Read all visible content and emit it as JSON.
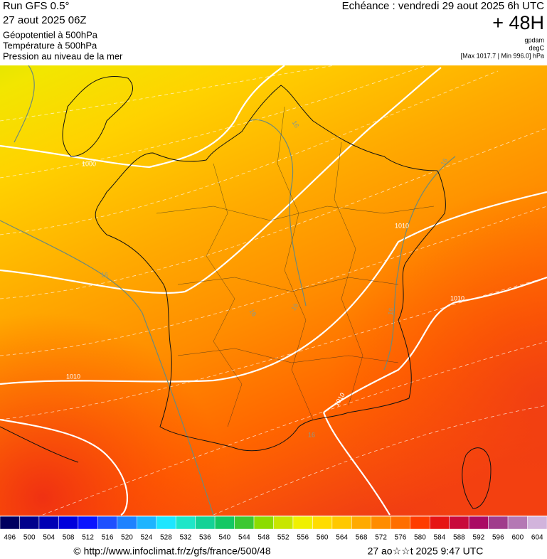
{
  "header": {
    "run": "Run GFS 0.5°",
    "date": "27 aout 2025 06Z",
    "title": "Géopotentiel à 500hPa",
    "subtitle1": "Température à 500hPa",
    "subtitle2": "Pression au niveau de la mer",
    "valid": "Echéance : vendredi 29 aout 2025 6h UTC",
    "lead": "+ 48H",
    "units": [
      "gpdam",
      "degC",
      "[Max 1017.7 | Min 996.0] hPa"
    ]
  },
  "map": {
    "contour_labels": [
      1000,
      1010,
      1010,
      1010,
      1010,
      16,
      16,
      16,
      16,
      16,
      16,
      16
    ]
  },
  "colorbar": {
    "values": [
      496,
      500,
      504,
      508,
      512,
      516,
      520,
      524,
      528,
      532,
      536,
      540,
      544,
      548,
      552,
      556,
      560,
      564,
      568,
      572,
      576,
      580,
      584,
      588,
      592,
      596,
      600,
      604
    ],
    "colors": [
      "#000060",
      "#00008c",
      "#0000b4",
      "#0000dc",
      "#0a14ff",
      "#1e50ff",
      "#1e82ff",
      "#1eb4ff",
      "#1ee6ff",
      "#1ee6c8",
      "#14d296",
      "#14c864",
      "#3cc832",
      "#8cdc00",
      "#c8e600",
      "#f0f000",
      "#ffdc00",
      "#ffc800",
      "#ffaa00",
      "#ff8c00",
      "#ff6e00",
      "#ff3c00",
      "#e61414",
      "#c80a3c",
      "#aa0a64",
      "#a03c8c",
      "#b478b4",
      "#d2b4dc"
    ]
  },
  "footer": {
    "url": "© http://www.infoclimat.fr/z/gfs/france/500/48",
    "time": "27 ao☆☆t 2025  9:47 UTC"
  }
}
